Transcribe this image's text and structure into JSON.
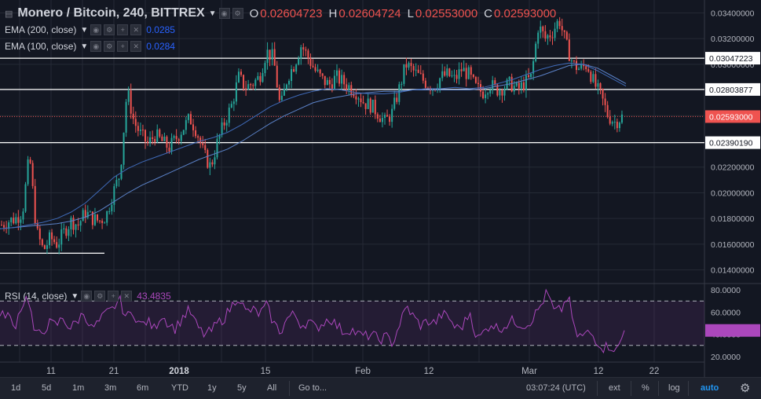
{
  "header": {
    "symbol": "Monero / Bitcoin, 240, BITTREX",
    "open_label": "O",
    "open": "0.02604723",
    "high_label": "H",
    "high": "0.02604724",
    "low_label": "L",
    "low": "0.02553000",
    "close_label": "C",
    "close": "0.02593000"
  },
  "indicators": [
    {
      "label": "EMA (200, close)",
      "value": "0.0285",
      "color": "#2962ff"
    },
    {
      "label": "EMA (100, close)",
      "value": "0.0284",
      "color": "#2962ff"
    }
  ],
  "rsi": {
    "label": "RSI (14, close)",
    "value": "43.4835",
    "color": "#ab47bc"
  },
  "bottom_toolbar": {
    "ranges": [
      "1d",
      "5d",
      "1m",
      "3m",
      "6m",
      "YTD",
      "1y",
      "5y",
      "All"
    ],
    "goto": "Go to...",
    "time": "03:07:24 (UTC)",
    "ext": "ext",
    "percent": "%",
    "log": "log",
    "auto": "auto"
  },
  "colors": {
    "up": "#26a69a",
    "down": "#ef5350",
    "background": "#131722",
    "grid": "#252a35",
    "ema": "#2962ff",
    "rsi": "#ab47bc",
    "last_price": "#ef5350"
  },
  "chart_data": {
    "type": "candlestick",
    "price_axis": {
      "ylim": [
        0.013,
        0.035
      ],
      "ticks": [
        "0.03400000",
        "0.03200000",
        "0.03000000",
        "0.02800000",
        "0.02600000",
        "0.02400000",
        "0.02200000",
        "0.02000000",
        "0.01800000",
        "0.01600000",
        "0.01400000"
      ]
    },
    "time_axis": {
      "labels": [
        "11",
        "21",
        "2018",
        "15",
        "Feb",
        "12",
        "Mar",
        "12",
        "22"
      ],
      "bold_label": "2018"
    },
    "horizontal_lines": [
      {
        "value": 0.03047223,
        "label": "0.03047223"
      },
      {
        "value": 0.02803877,
        "label": "0.02803877"
      },
      {
        "value": 0.0239019,
        "label": "0.02390190"
      },
      {
        "value": 0.0153,
        "label": ""
      }
    ],
    "last_price": {
      "value": 0.02593,
      "label": "0.02593000"
    },
    "price_path": [
      0.0175,
      0.0178,
      0.018,
      0.0185,
      0.023,
      0.017,
      0.0155,
      0.0165,
      0.016,
      0.017,
      0.0178,
      0.0175,
      0.0185,
      0.018,
      0.0178,
      0.0182,
      0.02,
      0.0215,
      0.028,
      0.0255,
      0.0245,
      0.0238,
      0.0245,
      0.024,
      0.0235,
      0.0242,
      0.025,
      0.0258,
      0.0248,
      0.023,
      0.022,
      0.024,
      0.0255,
      0.0268,
      0.029,
      0.0282,
      0.0285,
      0.029,
      0.031,
      0.0305,
      0.0265,
      0.029,
      0.03,
      0.0315,
      0.0305,
      0.0295,
      0.0288,
      0.0284,
      0.029,
      0.0286,
      0.0282,
      0.0278,
      0.027,
      0.0268,
      0.0262,
      0.0255,
      0.0262,
      0.028,
      0.03,
      0.0295,
      0.029,
      0.0285,
      0.0282,
      0.029,
      0.0292,
      0.0288,
      0.0296,
      0.0292,
      0.0282,
      0.0278,
      0.0285,
      0.028,
      0.0282,
      0.0285,
      0.028,
      0.0285,
      0.029,
      0.033,
      0.032,
      0.0325,
      0.0335,
      0.0315,
      0.03,
      0.0296,
      0.03,
      0.0285,
      0.0275,
      0.026,
      0.0255,
      0.0259
    ],
    "ema200_path": [
      0.0172,
      0.0173,
      0.0174,
      0.0175,
      0.0176,
      0.0178,
      0.0181,
      0.0186,
      0.0193,
      0.02,
      0.0206,
      0.0211,
      0.0216,
      0.0221,
      0.0226,
      0.023,
      0.0234,
      0.024,
      0.0247,
      0.0254,
      0.026,
      0.0265,
      0.027,
      0.0273,
      0.0275,
      0.0277,
      0.0278,
      0.0279,
      0.0279,
      0.028,
      0.028,
      0.028,
      0.028,
      0.028,
      0.0281,
      0.0283,
      0.0285,
      0.0288,
      0.0291,
      0.0295,
      0.0299,
      0.03,
      0.0297,
      0.0291,
      0.0285
    ],
    "ema100_path": [
      0.0172,
      0.0173,
      0.0175,
      0.0177,
      0.018,
      0.0185,
      0.0192,
      0.0202,
      0.0212,
      0.0219,
      0.0224,
      0.0228,
      0.0232,
      0.0236,
      0.024,
      0.0243,
      0.0247,
      0.0253,
      0.026,
      0.0267,
      0.0272,
      0.0276,
      0.0279,
      0.0281,
      0.028,
      0.0278,
      0.0277,
      0.0277,
      0.0278,
      0.028,
      0.0281,
      0.0281,
      0.0282,
      0.0281,
      0.0282,
      0.0285,
      0.0288,
      0.0292,
      0.0296,
      0.0299,
      0.0301,
      0.03,
      0.0295,
      0.0289,
      0.0283
    ],
    "rsi_panel": {
      "ylim": [
        15,
        85
      ],
      "ticks": [
        "80.0000",
        "60.0000",
        "40.0000",
        "20.0000"
      ],
      "upper_band": 70,
      "lower_band": 30,
      "current": {
        "value": 43.4835,
        "label": "43.4835"
      },
      "path": [
        55,
        60,
        45,
        65,
        75,
        38,
        42,
        50,
        48,
        55,
        45,
        52,
        60,
        45,
        50,
        58,
        62,
        72,
        55,
        60,
        48,
        52,
        45,
        58,
        50,
        45,
        55,
        62,
        48,
        40,
        42,
        50,
        55,
        65,
        75,
        60,
        62,
        58,
        66,
        50,
        42,
        55,
        58,
        48,
        52,
        45,
        50,
        55,
        48,
        42,
        45,
        40,
        38,
        40,
        35,
        38,
        32,
        50,
        65,
        55,
        48,
        52,
        50,
        58,
        55,
        45,
        48,
        60,
        35,
        42,
        50,
        45,
        48,
        52,
        50,
        48,
        55,
        65,
        78,
        60,
        62,
        75,
        40,
        38,
        42,
        35,
        28,
        30,
        25,
        43.5
      ]
    }
  }
}
